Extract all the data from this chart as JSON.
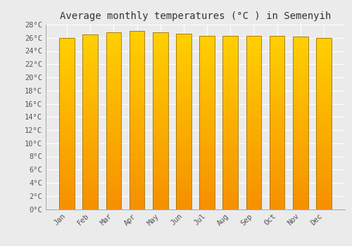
{
  "title": "Average monthly temperatures (°C ) in Semenyih",
  "months": [
    "Jan",
    "Feb",
    "Mar",
    "Apr",
    "May",
    "Jun",
    "Jul",
    "Aug",
    "Sep",
    "Oct",
    "Nov",
    "Dec"
  ],
  "values": [
    26.0,
    26.5,
    26.8,
    27.0,
    26.8,
    26.6,
    26.3,
    26.3,
    26.3,
    26.3,
    26.2,
    26.0
  ],
  "bar_color_center": "#FFD000",
  "bar_color_edge": "#F59500",
  "bar_edge_color": "#A07000",
  "ylim": [
    0,
    28
  ],
  "ytick_step": 2,
  "background_color": "#ebebeb",
  "grid_color": "#ffffff",
  "title_fontsize": 10,
  "tick_fontsize": 7.5,
  "font_family": "monospace",
  "bar_width": 0.65
}
